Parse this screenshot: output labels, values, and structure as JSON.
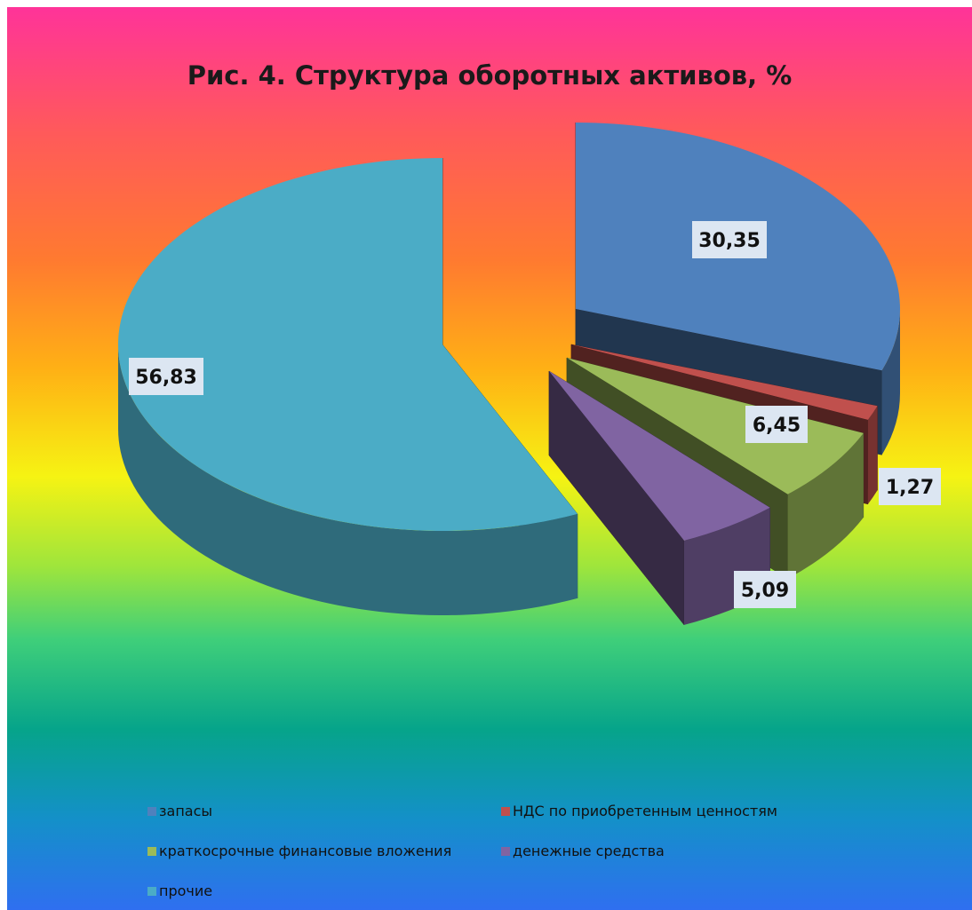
{
  "chart_data": {
    "type": "pie",
    "title": "Рис. 4. Структура оборотных активов, %",
    "categories": [
      "запасы",
      "НДС по приобретенным ценностям",
      "краткосрочные финансовые вложения",
      "денежные средства",
      "прочие"
    ],
    "values": [
      30.35,
      1.27,
      6.45,
      5.09,
      56.83
    ],
    "data_labels": [
      "30,35",
      "1,27",
      "6,45",
      "5,09",
      "56,83"
    ],
    "colors": [
      "#4f81bd",
      "#c0504d",
      "#9bbb59",
      "#8064a2",
      "#4bacc6"
    ],
    "style": "3d-exploded",
    "legend": "bottom"
  }
}
